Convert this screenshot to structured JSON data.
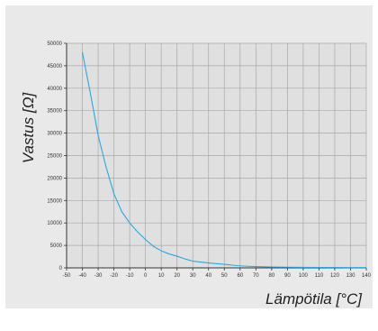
{
  "colors": {
    "panel_background": "#e9e9e9",
    "plot_background": "#e0e0e0",
    "gridline": "#a8a8a8",
    "axis": "#333333",
    "series_line": "#29a8e0"
  },
  "chart_data": {
    "type": "line",
    "title": "",
    "xlabel": "Lämpötila [°C]",
    "ylabel": "Vastus [Ω]",
    "xlim": [
      -50,
      140
    ],
    "ylim": [
      0,
      50000
    ],
    "grid": true,
    "x_ticks": [
      "-50",
      "-40",
      "-30",
      "-20",
      "-10",
      "0",
      "10",
      "20",
      "30",
      "40",
      "50",
      "60",
      "70",
      "80",
      "90",
      "100",
      "110",
      "120",
      "130",
      "140"
    ],
    "x_tick_values": [
      -50,
      -40,
      -30,
      -20,
      -10,
      0,
      10,
      20,
      30,
      40,
      50,
      60,
      70,
      80,
      90,
      100,
      110,
      120,
      130,
      140
    ],
    "y_ticks": [
      "0",
      "5000",
      "10000",
      "15000",
      "20000",
      "25000",
      "30000",
      "35000",
      "40000",
      "45000",
      "50000"
    ],
    "y_tick_values": [
      0,
      5000,
      10000,
      15000,
      20000,
      25000,
      30000,
      35000,
      40000,
      45000,
      50000
    ],
    "series": [
      {
        "x": [
          -40,
          -35,
          -30,
          -25,
          -20,
          -15,
          -10,
          -5,
          0,
          5,
          10,
          15,
          20,
          25,
          30,
          35,
          40,
          45,
          50,
          55,
          60,
          65,
          70,
          75,
          80,
          90,
          100,
          110,
          120,
          130,
          140
        ],
        "y": [
          48000,
          39000,
          29500,
          22500,
          16500,
          12500,
          10000,
          8000,
          6300,
          4800,
          3800,
          3100,
          2600,
          2000,
          1500,
          1300,
          1100,
          950,
          800,
          600,
          450,
          350,
          280,
          230,
          190,
          150,
          120,
          100,
          80,
          70,
          60
        ],
        "color": "#29a8e0"
      }
    ]
  }
}
